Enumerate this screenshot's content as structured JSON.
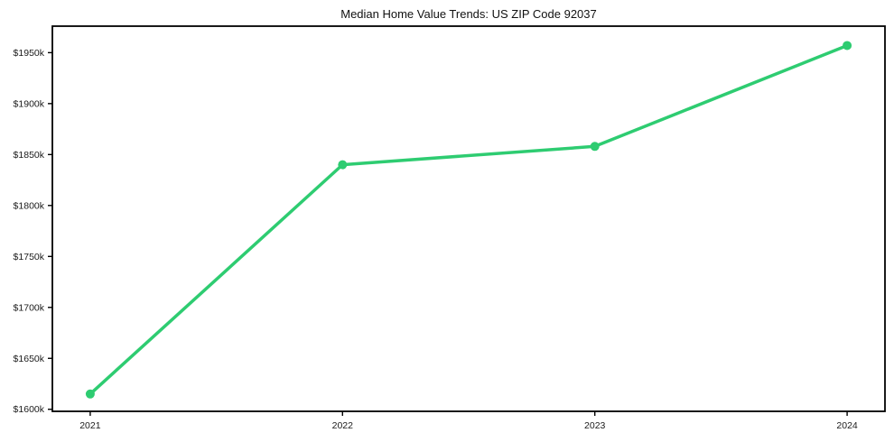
{
  "chart_data": {
    "type": "line",
    "title": "Median Home Value Trends: US ZIP Code 92037",
    "x": [
      2021,
      2022,
      2023,
      2024
    ],
    "x_tick_labels": [
      "2021",
      "2022",
      "2023",
      "2024"
    ],
    "values": [
      1615,
      1840,
      1858,
      1957
    ],
    "y_ticks": [
      1600,
      1650,
      1700,
      1750,
      1800,
      1850,
      1900,
      1950
    ],
    "y_tick_labels": [
      "$1600k",
      "$1650k",
      "$1700k",
      "$1750k",
      "$1800k",
      "$1850k",
      "$1900k",
      "$1950k"
    ],
    "ylim": [
      1598,
      1976
    ],
    "xlim": [
      2020.85,
      2024.15
    ],
    "grid": false,
    "legend": "none",
    "marker": "circle",
    "colors": {
      "line": "#2ecc71",
      "marker": "#2ecc71",
      "frame": "#000000",
      "text": "#1a1a1a"
    }
  }
}
